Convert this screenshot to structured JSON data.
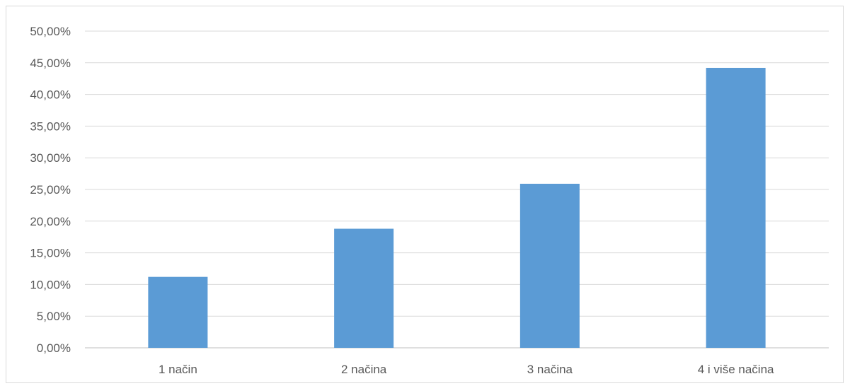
{
  "chart_data": {
    "type": "bar",
    "categories": [
      "1 način",
      "2 načina",
      "3 načina",
      "4 i više načina"
    ],
    "values": [
      11.2,
      18.8,
      25.9,
      44.2
    ],
    "ylim": [
      0,
      50
    ],
    "ytick_step": 5,
    "ytick_labels": [
      "0,00%",
      "5,00%",
      "10,00%",
      "15,00%",
      "20,00%",
      "25,00%",
      "30,00%",
      "35,00%",
      "40,00%",
      "45,00%",
      "50,00%"
    ],
    "bar_color": "#5b9bd5",
    "grid": true,
    "legend": false
  }
}
